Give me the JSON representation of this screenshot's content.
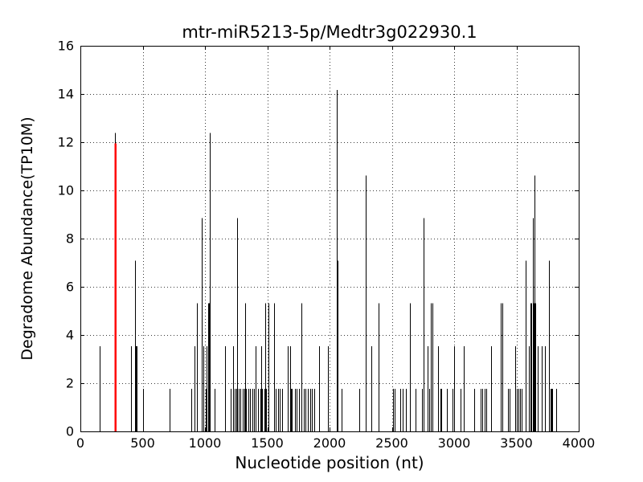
{
  "figure": {
    "title": "mtr-miR5213-5p/Medtr3g022930.1",
    "xlabel": "Nucleotide position (nt)",
    "ylabel": "Degradome Abundance(TP10M)"
  },
  "chart_data": {
    "type": "stem",
    "title": "mtr-miR5213-5p/Medtr3g022930.1",
    "xlabel": "Nucleotide position (nt)",
    "ylabel": "Degradome Abundance(TP10M)",
    "xlim": [
      0,
      4000
    ],
    "ylim": [
      0,
      16
    ],
    "xticks": [
      0,
      500,
      1000,
      1500,
      2000,
      2500,
      3000,
      3500,
      4000
    ],
    "yticks": [
      0,
      2,
      4,
      6,
      8,
      10,
      12,
      14,
      16
    ],
    "grid": "dotted, both axes, major ticks",
    "legend": "none",
    "stem_color": "#000000",
    "background_color": "#ffffff",
    "highlight_stem": {
      "x": 280,
      "y": 12.39,
      "red_overlay_to": 11.95,
      "color": "#ff0000"
    },
    "points": [
      [
        155,
        3.54
      ],
      [
        280,
        12.39
      ],
      [
        404,
        3.54
      ],
      [
        441,
        7.08
      ],
      [
        447,
        3.54
      ],
      [
        453,
        3.54
      ],
      [
        501,
        1.77
      ],
      [
        716,
        1.77
      ],
      [
        888,
        1.77
      ],
      [
        918,
        3.54
      ],
      [
        937,
        5.31
      ],
      [
        976,
        8.85
      ],
      [
        990,
        3.54
      ],
      [
        1008,
        1.77
      ],
      [
        1013,
        3.54
      ],
      [
        1024,
        5.31
      ],
      [
        1032,
        5.31
      ],
      [
        1040,
        12.39
      ],
      [
        1080,
        1.77
      ],
      [
        1161,
        3.54
      ],
      [
        1204,
        1.77
      ],
      [
        1226,
        3.54
      ],
      [
        1237,
        1.77
      ],
      [
        1253,
        1.77
      ],
      [
        1258,
        8.85
      ],
      [
        1270,
        1.77
      ],
      [
        1286,
        1.77
      ],
      [
        1300,
        1.77
      ],
      [
        1315,
        1.77
      ],
      [
        1322,
        5.31
      ],
      [
        1330,
        1.77
      ],
      [
        1347,
        1.77
      ],
      [
        1363,
        1.77
      ],
      [
        1379,
        1.77
      ],
      [
        1395,
        1.77
      ],
      [
        1408,
        3.54
      ],
      [
        1428,
        1.77
      ],
      [
        1445,
        1.77
      ],
      [
        1452,
        3.54
      ],
      [
        1460,
        1.77
      ],
      [
        1476,
        1.77
      ],
      [
        1484,
        5.31
      ],
      [
        1492,
        1.77
      ],
      [
        1512,
        5.31
      ],
      [
        1555,
        5.31
      ],
      [
        1570,
        1.77
      ],
      [
        1585,
        1.77
      ],
      [
        1602,
        1.77
      ],
      [
        1619,
        1.77
      ],
      [
        1667,
        3.54
      ],
      [
        1682,
        3.54
      ],
      [
        1690,
        1.77
      ],
      [
        1697,
        1.77
      ],
      [
        1721,
        1.77
      ],
      [
        1737,
        1.77
      ],
      [
        1753,
        1.77
      ],
      [
        1774,
        5.31
      ],
      [
        1791,
        1.77
      ],
      [
        1806,
        1.77
      ],
      [
        1828,
        1.77
      ],
      [
        1845,
        1.77
      ],
      [
        1860,
        1.77
      ],
      [
        1875,
        1.77
      ],
      [
        1914,
        3.54
      ],
      [
        1990,
        3.54
      ],
      [
        2058,
        14.16
      ],
      [
        2065,
        7.08
      ],
      [
        2097,
        1.77
      ],
      [
        2237,
        1.77
      ],
      [
        2290,
        10.62
      ],
      [
        2337,
        3.54
      ],
      [
        2394,
        5.31
      ],
      [
        2510,
        1.77
      ],
      [
        2525,
        1.77
      ],
      [
        2570,
        1.77
      ],
      [
        2590,
        1.77
      ],
      [
        2613,
        1.77
      ],
      [
        2645,
        5.31
      ],
      [
        2688,
        1.77
      ],
      [
        2742,
        1.77
      ],
      [
        2757,
        8.85
      ],
      [
        2785,
        3.54
      ],
      [
        2803,
        1.77
      ],
      [
        2814,
        5.31
      ],
      [
        2823,
        5.31
      ],
      [
        2870,
        3.54
      ],
      [
        2888,
        1.77
      ],
      [
        2896,
        1.77
      ],
      [
        2940,
        1.77
      ],
      [
        2985,
        1.77
      ],
      [
        3000,
        3.54
      ],
      [
        3053,
        1.77
      ],
      [
        3077,
        3.54
      ],
      [
        3161,
        1.77
      ],
      [
        3210,
        1.77
      ],
      [
        3225,
        1.77
      ],
      [
        3242,
        1.77
      ],
      [
        3258,
        1.77
      ],
      [
        3295,
        3.54
      ],
      [
        3376,
        5.31
      ],
      [
        3388,
        5.31
      ],
      [
        3434,
        1.77
      ],
      [
        3445,
        1.77
      ],
      [
        3490,
        3.54
      ],
      [
        3500,
        1.77
      ],
      [
        3516,
        1.77
      ],
      [
        3530,
        1.77
      ],
      [
        3545,
        1.77
      ],
      [
        3574,
        7.08
      ],
      [
        3598,
        3.54
      ],
      [
        3615,
        5.31
      ],
      [
        3622,
        5.31
      ],
      [
        3630,
        8.85
      ],
      [
        3638,
        5.31
      ],
      [
        3645,
        10.62
      ],
      [
        3652,
        5.31
      ],
      [
        3671,
        3.54
      ],
      [
        3703,
        3.54
      ],
      [
        3727,
        3.54
      ],
      [
        3759,
        7.08
      ],
      [
        3775,
        1.77
      ],
      [
        3782,
        1.77
      ],
      [
        3790,
        1.77
      ],
      [
        3817,
        1.77
      ]
    ]
  }
}
